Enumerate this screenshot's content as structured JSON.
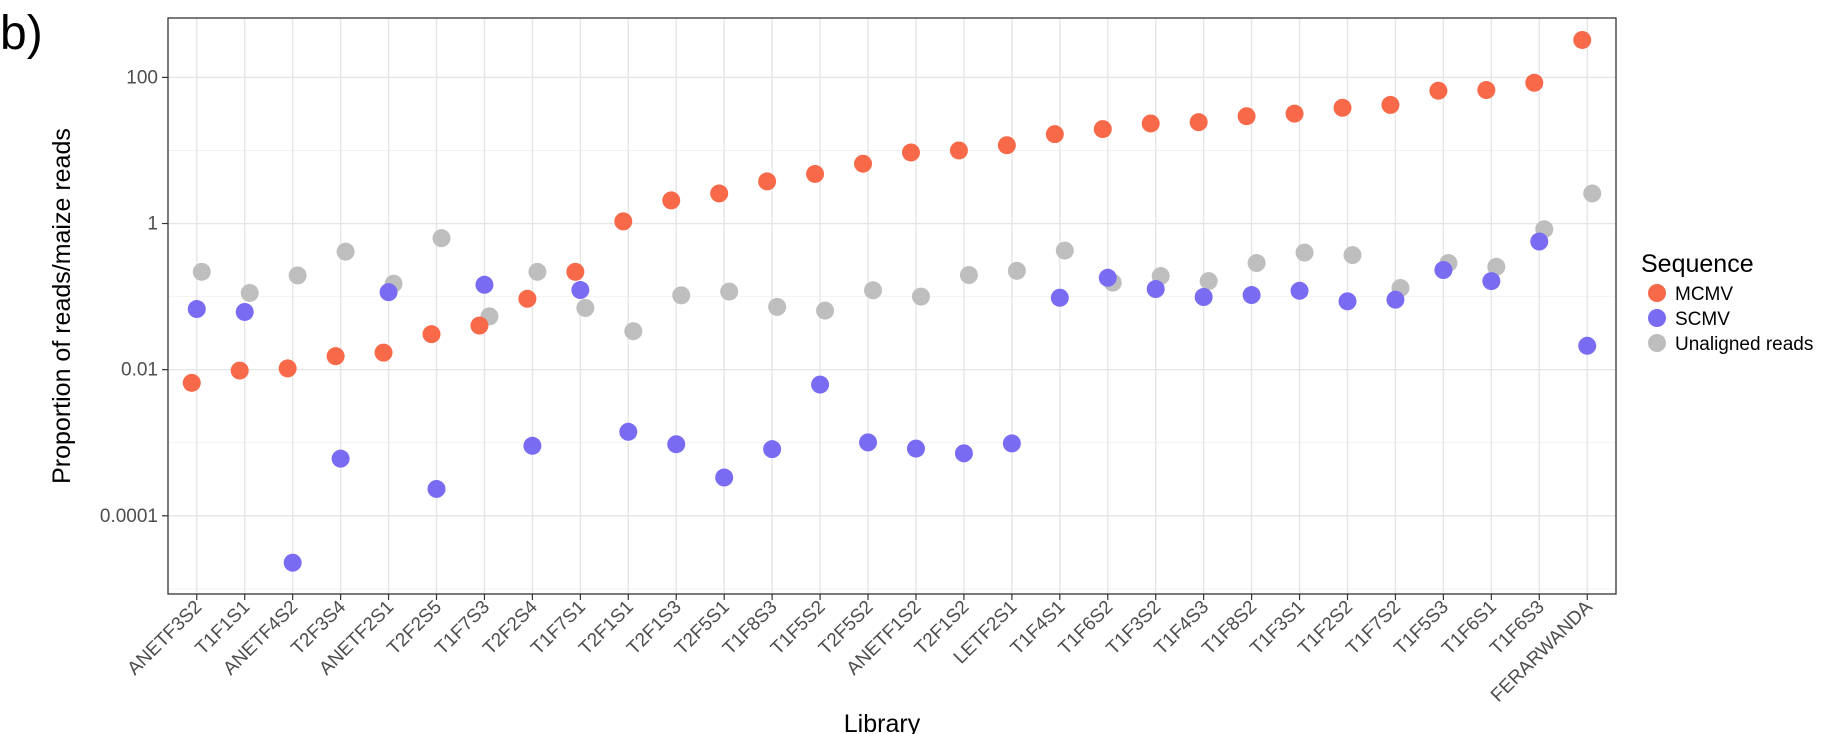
{
  "panel_label": "b)",
  "chart_data": {
    "type": "scatter",
    "xlabel": "Library",
    "ylabel": "Proportion of reads/maize reads",
    "yscale": "log10",
    "ylim": [
      8.5e-06,
      650
    ],
    "yticks": [
      0.0001,
      0.01,
      1,
      100
    ],
    "ytick_labels": [
      "0.0001",
      "0.01",
      "1",
      "100"
    ],
    "grid": true,
    "legend_position": "right",
    "legend_title": "Sequence",
    "categories": [
      "ANETF3S2",
      "T1F1S1",
      "ANETF4S2",
      "T2F3S4",
      "ANETF2S1",
      "T2F2S5",
      "T1F7S3",
      "T2F2S4",
      "T1F7S1",
      "T2F1S1",
      "T2F1S3",
      "T2F5S1",
      "T1F8S3",
      "T1F5S2",
      "T2F5S2",
      "ANETF1S2",
      "T2F1S2",
      "LETF2S1",
      "T1F4S1",
      "T1F6S2",
      "T1F3S2",
      "T1F4S3",
      "T1F8S2",
      "T1F3S1",
      "T1F2S2",
      "T1F7S2",
      "T1F5S3",
      "T1F6S1",
      "T1F6S3",
      "FERARWANDA"
    ],
    "series": [
      {
        "name": "MCMV",
        "color": "#f8694a",
        "values": [
          0.0066,
          0.0097,
          0.0104,
          0.0153,
          0.0171,
          0.0306,
          0.0401,
          0.0934,
          0.218,
          1.07,
          2.07,
          2.58,
          3.77,
          4.77,
          6.59,
          9.39,
          10.0,
          11.8,
          16.7,
          19.6,
          23.4,
          24.4,
          29.4,
          31.9,
          38.4,
          42.0,
          65.7,
          67.2,
          84.4,
          325
        ]
      },
      {
        "name": "SCMV",
        "color": "#7a6cf2",
        "values": [
          0.0676,
          0.0616,
          2.28e-05,
          0.000605,
          0.115,
          0.000233,
          0.145,
          0.000908,
          0.123,
          0.00141,
          0.000953,
          0.000334,
          0.000817,
          0.00624,
          0.00101,
          0.000831,
          0.000716,
          0.000978,
          0.0964,
          0.181,
          0.127,
          0.0987,
          0.105,
          0.12,
          0.0861,
          0.0907,
          0.231,
          0.163,
          0.567,
          0.0212
        ]
      },
      {
        "name": "Unaligned reads",
        "color": "#bebebe",
        "values": [
          0.218,
          0.112,
          0.195,
          0.412,
          0.15,
          0.631,
          0.0537,
          0.218,
          0.0699,
          0.0336,
          0.104,
          0.117,
          0.0723,
          0.0643,
          0.122,
          0.1,
          0.197,
          0.225,
          0.426,
          0.155,
          0.191,
          0.163,
          0.288,
          0.4,
          0.37,
          0.131,
          0.288,
          0.256,
          0.835,
          2.58
        ]
      }
    ]
  }
}
